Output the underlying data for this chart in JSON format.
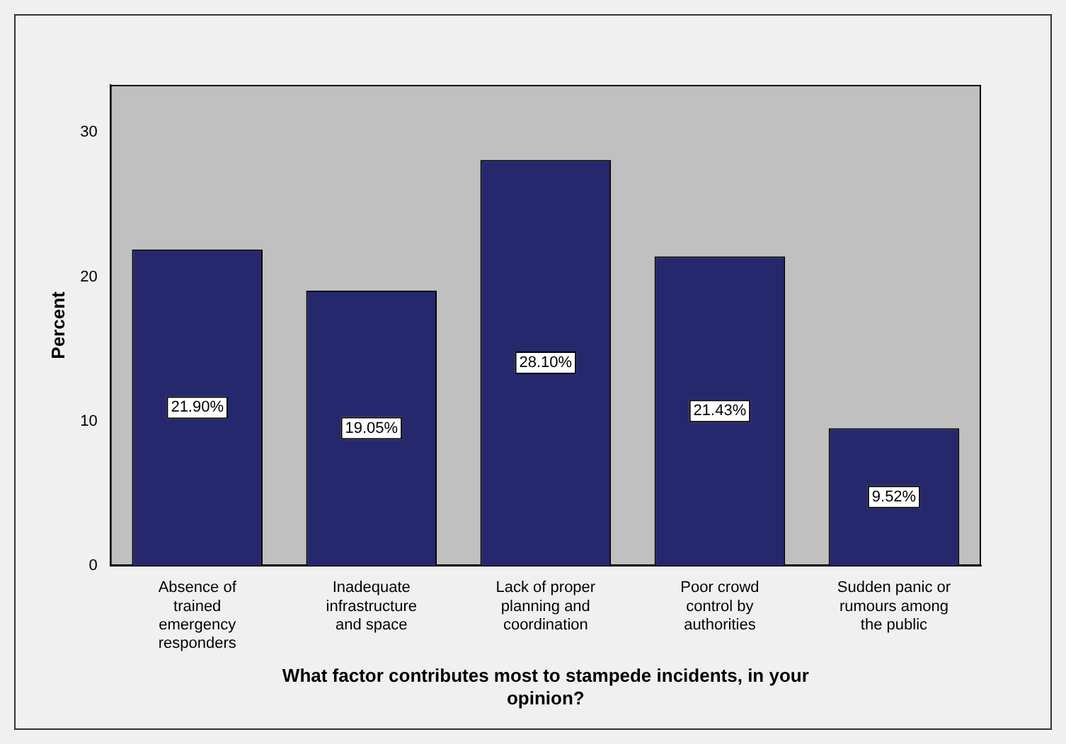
{
  "chart_data": {
    "type": "bar",
    "xlabel": "What factor contributes most to stampede incidents, in your opinion?",
    "ylabel": "Percent",
    "categories": [
      "Absence of trained emergency responders",
      "Inadequate infrastructure and space",
      "Lack of proper planning and coordination",
      "Poor crowd control by authorities",
      "Sudden panic or rumours among the public"
    ],
    "values": [
      21.9,
      19.05,
      28.1,
      21.43,
      9.52
    ],
    "value_labels": [
      "21.90%",
      "19.05%",
      "28.10%",
      "21.43%",
      "9.52%"
    ],
    "color": "#26286e",
    "ylim": [
      0,
      33.3
    ],
    "yticks": [
      0,
      10,
      20,
      30
    ],
    "grid": false,
    "legend": false
  }
}
